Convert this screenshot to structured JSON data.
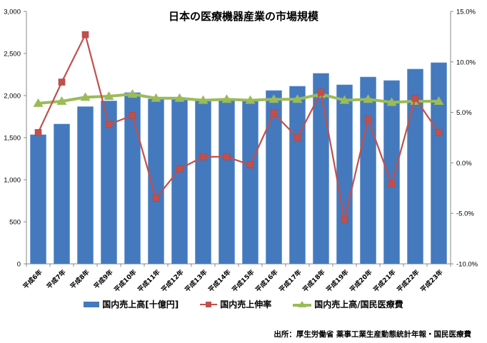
{
  "chart_data": {
    "type": "bar+line",
    "title": "日本の医療機器産業の市場規模",
    "categories": [
      "平成6年",
      "平成7年",
      "平成8年",
      "平成9年",
      "平成10年",
      "平成11年",
      "平成12年",
      "平成13年",
      "平成14年",
      "平成15年",
      "平成16年",
      "平成17年",
      "平成18年",
      "平成19年",
      "平成20年",
      "平成21年",
      "平成22年",
      "平成23年"
    ],
    "series": [
      {
        "name": "国内売上高[十億円]",
        "type": "bar",
        "axis": "left",
        "color": "#4479BD",
        "values": [
          1534,
          1661,
          1868,
          1936,
          2034,
          1958,
          1958,
          1950,
          1950,
          1950,
          2059,
          2110,
          2263,
          2127,
          2220,
          2178,
          2314,
          2390
        ]
      },
      {
        "name": "国内売上伸率",
        "type": "line",
        "axis": "right",
        "marker": "square",
        "color": "#C0504D",
        "values": [
          3.0,
          8.0,
          12.7,
          3.8,
          4.7,
          -3.5,
          -0.6,
          0.6,
          0.6,
          -0.2,
          4.9,
          2.5,
          7.0,
          -5.6,
          4.3,
          -2.1,
          6.4,
          3.0
        ]
      },
      {
        "name": "国内売上高/国民医療費",
        "type": "line",
        "axis": "right",
        "marker": "triangle",
        "color": "#9BBB59",
        "values": [
          5.9,
          6.1,
          6.5,
          6.6,
          6.8,
          6.4,
          6.4,
          6.2,
          6.3,
          6.2,
          6.3,
          6.3,
          6.8,
          6.2,
          6.3,
          6.0,
          6.1,
          6.1
        ]
      }
    ],
    "left_axis": {
      "min": 0,
      "max": 3000,
      "ticks": [
        "0",
        "500",
        "1,000",
        "1,500",
        "2,000",
        "2,500",
        "3,000"
      ]
    },
    "right_axis": {
      "min": -10,
      "max": 15,
      "ticks": [
        "-10.0%",
        "-5.0%",
        "0.0%",
        "5.0%",
        "10.0%",
        "15.0%"
      ]
    },
    "xlabel": "",
    "ylabel": "",
    "grid": false,
    "legend_position": "bottom"
  },
  "source": "出所：厚生労働省 薬事工業生産動態統計年報・国民医療費"
}
